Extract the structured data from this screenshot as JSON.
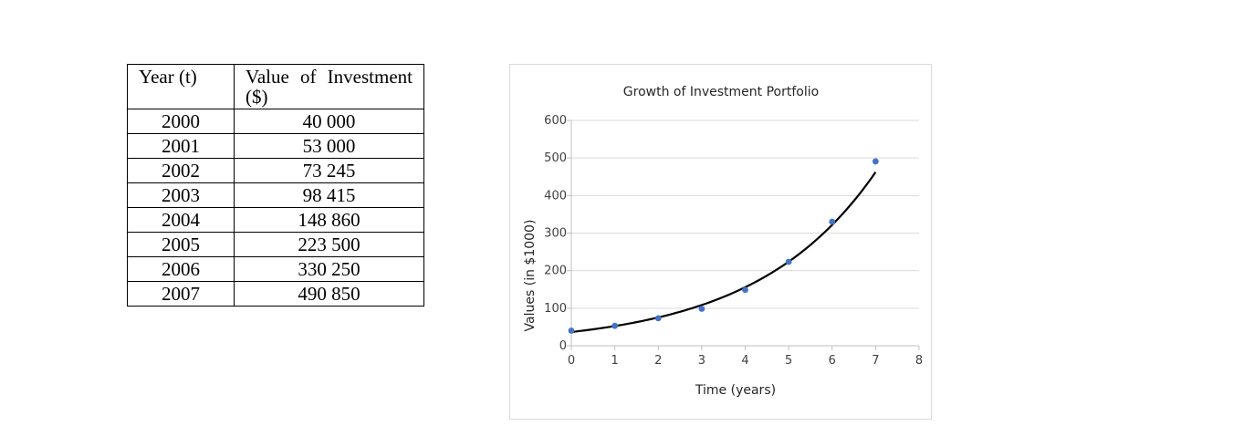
{
  "table": {
    "headers": [
      "Year (t)",
      "Value of Investment ($)"
    ],
    "rows": [
      [
        "2000",
        "40 000"
      ],
      [
        "2001",
        "53 000"
      ],
      [
        "2002",
        "73 245"
      ],
      [
        "2003",
        "98 415"
      ],
      [
        "2004",
        "148 860"
      ],
      [
        "2005",
        "223 500"
      ],
      [
        "2006",
        "330 250"
      ],
      [
        "2007",
        "490 850"
      ]
    ]
  },
  "chart_data": {
    "type": "scatter",
    "title": "Growth of Investment Portfolio",
    "xlabel": "Time (years)",
    "ylabel": "Values (in $1000)",
    "xlim": [
      0,
      8
    ],
    "ylim": [
      0,
      600
    ],
    "xticks": [
      0,
      1,
      2,
      3,
      4,
      5,
      6,
      7,
      8
    ],
    "yticks": [
      0,
      100,
      200,
      300,
      400,
      500,
      600
    ],
    "grid": true,
    "series": [
      {
        "x": [
          0,
          1,
          2,
          3,
          4,
          5,
          6,
          7
        ],
        "y": [
          40,
          53,
          73.245,
          98.415,
          148.86,
          223.5,
          330.25,
          490.85
        ],
        "color": "#4472c4"
      }
    ],
    "trendline": {
      "type": "exponential",
      "a": 36.5,
      "b": 0.3627,
      "color": "#000000"
    }
  }
}
